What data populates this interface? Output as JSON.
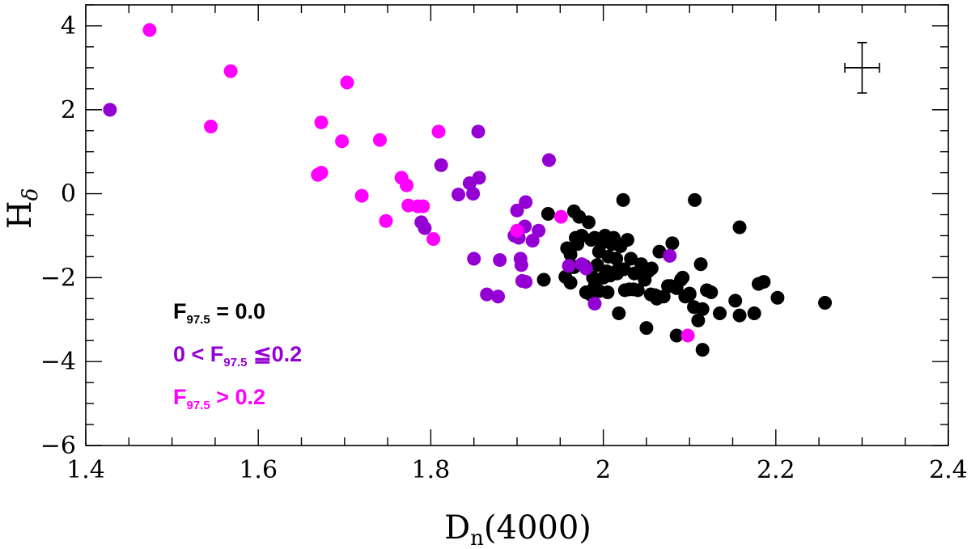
{
  "chart_data": {
    "type": "scatter",
    "xlabel": "D",
    "xlabel_sub": "n",
    "xlabel_suffix": "(4000)",
    "ylabel": "H",
    "ylabel_sub": "δ",
    "xlim": [
      1.4,
      2.4
    ],
    "ylim": [
      -6,
      4.5
    ],
    "xticks": [
      1.4,
      1.6,
      1.8,
      2,
      2.2,
      2.4
    ],
    "xtick_labels": [
      "1.4",
      "1.6",
      "1.8",
      "2",
      "2.2",
      "2.4"
    ],
    "yticks": [
      -6,
      -4,
      -2,
      0,
      2,
      4
    ],
    "ytick_labels": [
      "−6",
      "−4",
      "−2",
      "0",
      "2",
      "4"
    ],
    "legend_position": "bottom-left",
    "error_bar": {
      "x": 2.3,
      "y": 3.0,
      "xerr": 0.02,
      "yerr": 0.6
    },
    "series": [
      {
        "name": "F97.5 = 0.0",
        "legend_parts": [
          "F",
          "97.5",
          " = 0.0"
        ],
        "color": "#000000",
        "x": [
          1.936,
          1.931,
          1.956,
          1.962,
          1.966,
          1.968,
          1.972,
          1.975,
          1.978,
          1.983,
          1.958,
          1.962,
          1.966,
          1.97,
          1.986,
          1.99,
          1.995,
          1.998,
          2.002,
          2.006,
          2.01,
          2.012,
          2.015,
          1.98,
          1.985,
          1.99,
          1.995,
          2.0,
          2.004,
          2.008,
          2.012,
          2.016,
          2.02,
          2.024,
          2.028,
          2.03,
          2.032,
          2.036,
          2.04,
          2.044,
          2.048,
          2.052,
          2.056,
          2.06,
          2.065,
          2.07,
          2.075,
          2.08,
          2.085,
          2.09,
          2.095,
          2.1,
          2.105,
          2.11,
          2.115,
          2.12,
          2.125,
          2.023,
          2.106,
          2.158,
          2.018,
          2.05,
          2.085,
          2.113,
          2.115,
          2.135,
          2.153,
          2.158,
          2.175,
          2.18,
          2.186,
          2.202,
          2.257,
          1.988,
          1.993,
          2.005,
          2.015,
          2.025,
          2.035,
          2.045,
          2.055,
          2.062,
          2.078,
          2.092,
          2.1
        ],
        "y": [
          -0.48,
          -2.05,
          -1.98,
          -2.12,
          -0.42,
          -1.05,
          -0.55,
          -1.0,
          -1.72,
          -0.68,
          -1.3,
          -1.45,
          -1.75,
          -1.2,
          -1.1,
          -1.05,
          -1.38,
          -1.18,
          -1.0,
          -1.5,
          -1.2,
          -1.05,
          -1.55,
          -2.35,
          -2.4,
          -2.2,
          -2.32,
          -2.0,
          -1.85,
          -1.95,
          -1.08,
          -1.9,
          -1.25,
          -1.8,
          -1.1,
          -2.28,
          -1.55,
          -1.9,
          -2.3,
          -1.68,
          -2.05,
          -1.85,
          -1.78,
          -2.42,
          -1.38,
          -2.45,
          -2.2,
          -1.18,
          -2.25,
          -2.05,
          -2.45,
          -2.38,
          -2.7,
          -3.02,
          -2.75,
          -2.3,
          -2.35,
          -0.15,
          -0.15,
          -0.8,
          -2.85,
          -3.2,
          -3.38,
          -1.68,
          -3.72,
          -2.85,
          -2.55,
          -2.9,
          -2.85,
          -2.15,
          -2.1,
          -2.48,
          -2.6,
          -2.0,
          -1.7,
          -2.35,
          -1.85,
          -2.3,
          -2.28,
          -1.92,
          -2.4,
          -2.5,
          -2.2,
          -2.0,
          -2.4
        ]
      },
      {
        "name": "0 < F97.5 ≦0.2",
        "legend_parts": [
          "0 < F",
          "97.5",
          " ≦0.2"
        ],
        "color": "#9400D3",
        "x": [
          1.428,
          1.812,
          1.855,
          1.845,
          1.856,
          1.832,
          1.849,
          1.937,
          1.789,
          1.793,
          1.85,
          1.865,
          1.878,
          1.88,
          1.897,
          1.9,
          1.904,
          1.905,
          1.91,
          1.902,
          1.906,
          1.91,
          1.918,
          1.925,
          1.909,
          1.96,
          1.975,
          1.98,
          1.99,
          2.077
        ],
        "y": [
          2.0,
          0.68,
          1.48,
          0.25,
          0.38,
          -0.02,
          0.0,
          0.8,
          -0.68,
          -0.82,
          -1.55,
          -2.4,
          -2.45,
          -1.58,
          -1.0,
          -0.4,
          -1.55,
          -1.7,
          -2.1,
          -1.05,
          -2.08,
          -0.2,
          -1.12,
          -0.88,
          -0.78,
          -1.72,
          -1.68,
          -1.78,
          -2.62,
          -1.48
        ]
      },
      {
        "name": "F97.5 > 0.2",
        "legend_parts": [
          "F",
          "97.5",
          " > 0.2"
        ],
        "color": "#FF00FF",
        "x": [
          1.474,
          1.568,
          1.545,
          1.673,
          1.703,
          1.697,
          1.669,
          1.673,
          1.741,
          1.809,
          1.766,
          1.772,
          1.72,
          1.774,
          1.748,
          1.785,
          1.791,
          1.803,
          1.9,
          1.951,
          2.098
        ],
        "y": [
          3.9,
          2.92,
          1.6,
          1.7,
          2.65,
          1.25,
          0.45,
          0.5,
          1.28,
          1.48,
          0.38,
          0.2,
          -0.05,
          -0.28,
          -0.65,
          -0.3,
          -0.3,
          -1.08,
          -0.88,
          -0.55,
          -3.38
        ]
      }
    ]
  }
}
